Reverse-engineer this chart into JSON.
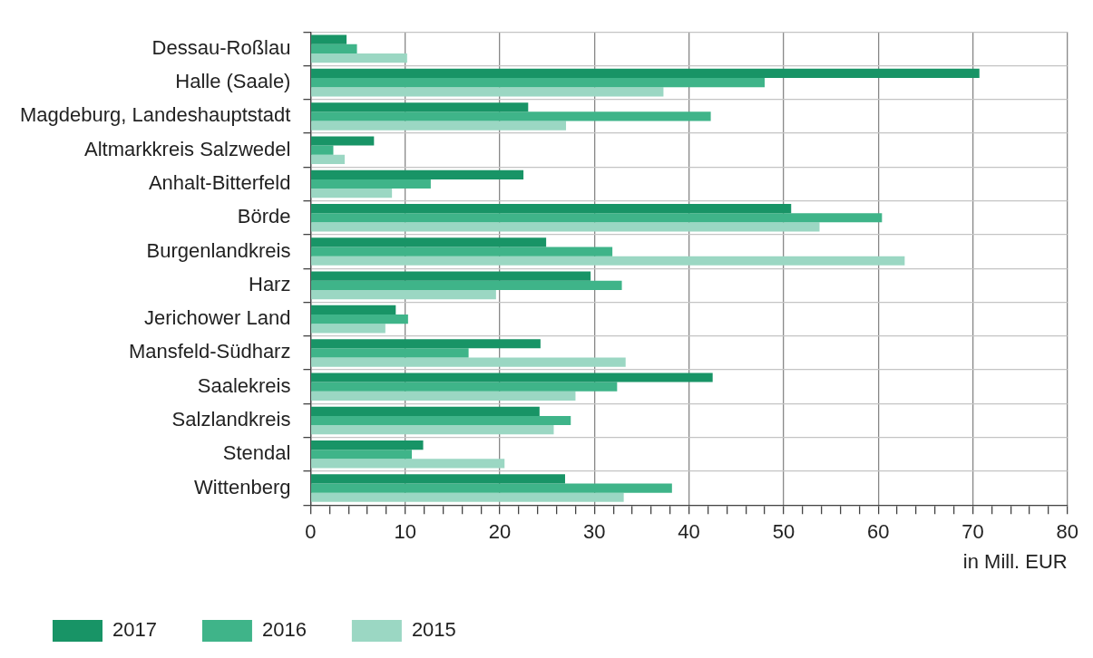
{
  "chart_data": {
    "type": "bar",
    "orientation": "horizontal",
    "xlabel": "in Mill. EUR",
    "categories": [
      "Dessau-Roßlau",
      "Halle (Saale)",
      "Magdeburg, Landeshauptstadt",
      "Altmarkkreis Salzwedel",
      "Anhalt-Bitterfeld",
      "Börde",
      "Burgenlandkreis",
      "Harz",
      "Jerichower Land",
      "Mansfeld-Südharz",
      "Saalekreis",
      "Salzlandkreis",
      "Stendal",
      "Wittenberg"
    ],
    "series": [
      {
        "name": "2017",
        "color": "#189466",
        "values": [
          3.8,
          70.7,
          23.0,
          6.7,
          22.5,
          50.8,
          24.9,
          29.6,
          9.0,
          24.3,
          42.5,
          24.2,
          11.9,
          26.9
        ]
      },
      {
        "name": "2016",
        "color": "#3fb489",
        "values": [
          4.9,
          48.0,
          42.3,
          2.4,
          12.7,
          60.4,
          31.9,
          32.9,
          10.3,
          16.7,
          32.4,
          27.5,
          10.7,
          38.2
        ]
      },
      {
        "name": "2015",
        "color": "#9bd7c3",
        "values": [
          10.2,
          37.3,
          27.0,
          3.6,
          8.6,
          53.8,
          62.8,
          19.6,
          7.9,
          33.3,
          28.0,
          25.7,
          20.5,
          33.1
        ]
      }
    ],
    "xlim": [
      0,
      80
    ],
    "xticks": [
      0,
      {
        "value": 2,
        "label": null
      },
      {
        "value": 4,
        "label": null
      },
      {
        "value": 6,
        "label": null
      },
      {
        "value": 8,
        "label": null
      },
      10,
      {
        "value": 12,
        "label": null
      },
      {
        "value": 14,
        "label": null
      },
      {
        "value": 16,
        "label": null
      },
      {
        "value": 18,
        "label": null
      },
      20,
      {
        "value": 22,
        "label": null
      },
      {
        "value": 24,
        "label": null
      },
      {
        "value": 26,
        "label": null
      },
      {
        "value": 28,
        "label": null
      },
      30,
      {
        "value": 32,
        "label": null
      },
      {
        "value": 34,
        "label": null
      },
      {
        "value": 36,
        "label": null
      },
      {
        "value": 38,
        "label": null
      },
      40,
      {
        "value": 42,
        "label": null
      },
      {
        "value": 44,
        "label": null
      },
      {
        "value": 46,
        "label": null
      },
      {
        "value": 48,
        "label": null
      },
      50,
      {
        "value": 52,
        "label": null
      },
      {
        "value": 54,
        "label": null
      },
      {
        "value": 56,
        "label": null
      },
      {
        "value": 58,
        "label": null
      },
      60,
      {
        "value": 62,
        "label": null
      },
      {
        "value": 64,
        "label": null
      },
      {
        "value": 66,
        "label": null
      },
      {
        "value": 68,
        "label": null
      },
      70,
      {
        "value": 72,
        "label": null
      },
      {
        "value": 74,
        "label": null
      },
      {
        "value": 76,
        "label": null
      },
      {
        "value": 78,
        "label": null
      },
      80
    ],
    "grid": true,
    "legend": "bottom"
  }
}
